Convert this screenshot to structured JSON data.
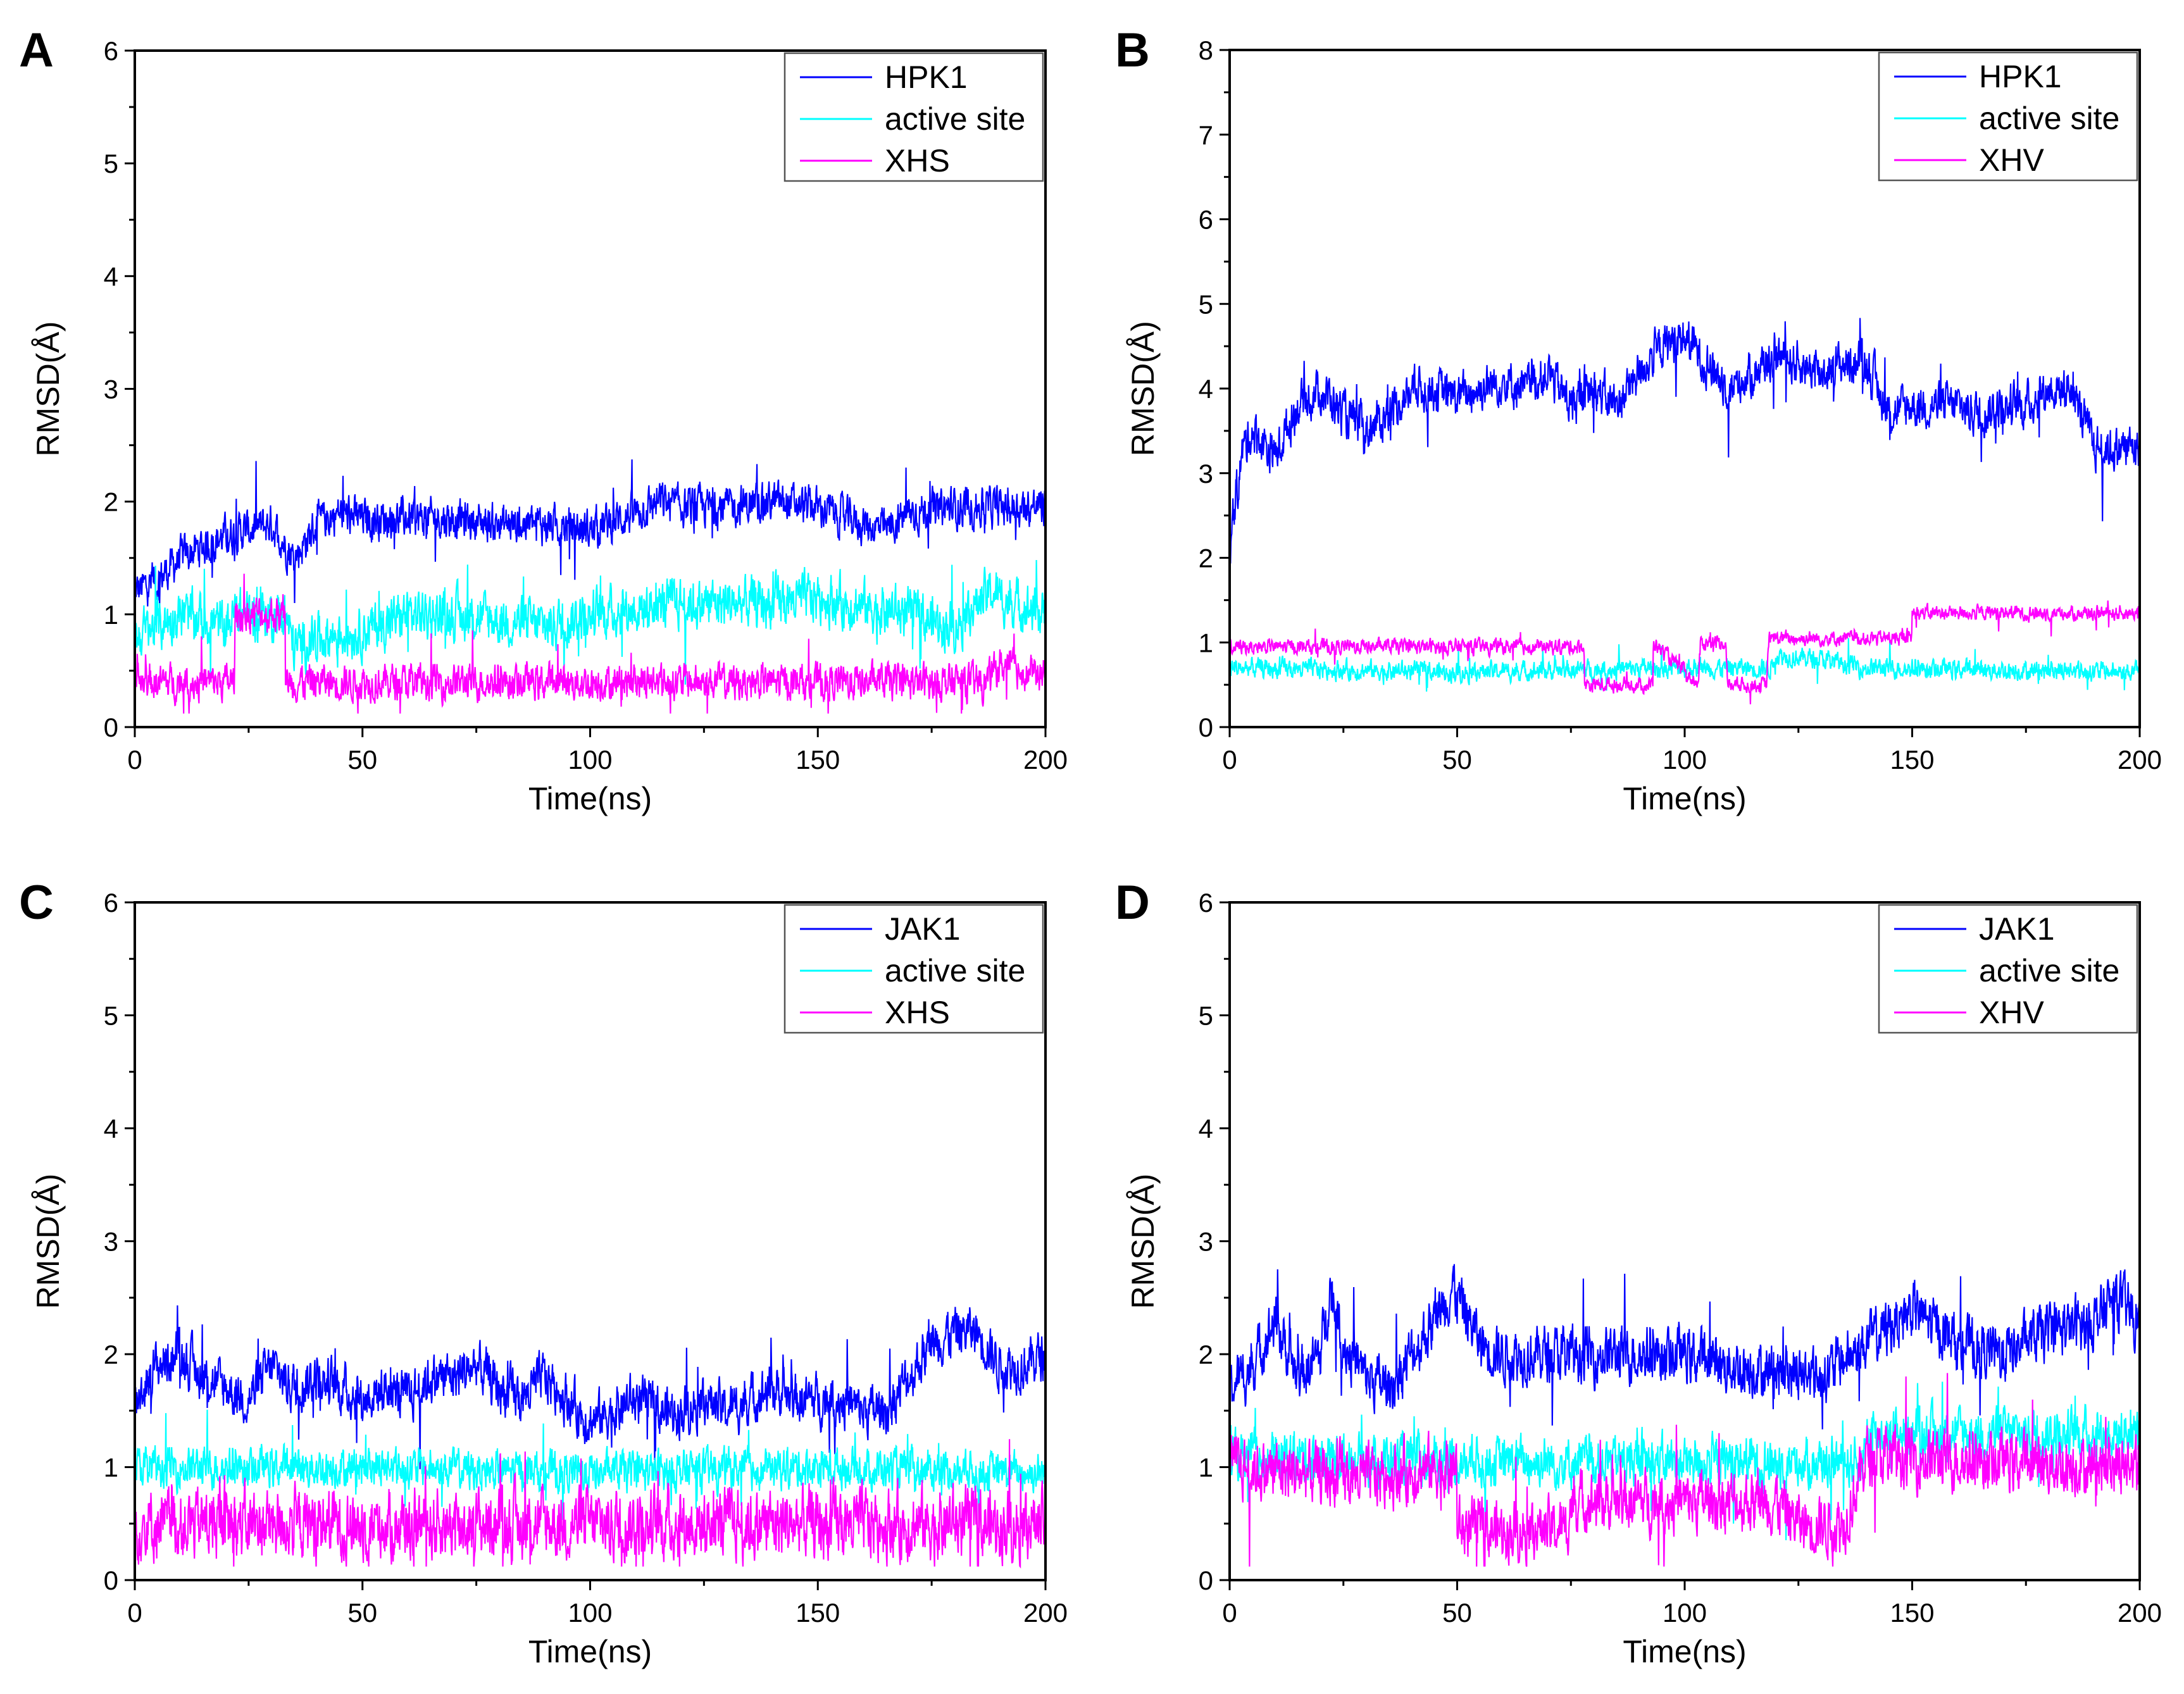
{
  "chart_data": [
    {
      "type": "line",
      "panel": "A",
      "xlabel": "Time(ns)",
      "ylabel": "RMSD(Å)",
      "xlim": [
        0,
        200
      ],
      "ylim": [
        0,
        6
      ],
      "xticks": [
        0,
        50,
        100,
        150,
        200
      ],
      "yticks": [
        0,
        1,
        2,
        3,
        4,
        5,
        6
      ],
      "legend_position": "top-right",
      "series": [
        {
          "name": "HPK1",
          "color": "#0000ff",
          "x": [
            0,
            5,
            10,
            15,
            20,
            25,
            30,
            35,
            40,
            45,
            50,
            60,
            70,
            80,
            90,
            100,
            110,
            115,
            120,
            130,
            140,
            150,
            160,
            165,
            170,
            180,
            190,
            200
          ],
          "mean": [
            1.2,
            1.3,
            1.5,
            1.6,
            1.7,
            1.75,
            1.8,
            1.5,
            1.8,
            1.9,
            1.85,
            1.85,
            1.85,
            1.8,
            1.8,
            1.75,
            1.9,
            2.0,
            1.95,
            1.95,
            2.0,
            1.95,
            1.8,
            1.75,
            1.9,
            1.95,
            1.95,
            1.95
          ],
          "spread": 0.2
        },
        {
          "name": "active site",
          "color": "#00ffff",
          "x": [
            0,
            10,
            20,
            22,
            33,
            35,
            40,
            50,
            60,
            70,
            80,
            90,
            100,
            120,
            140,
            150,
            170,
            180,
            188,
            190,
            200
          ],
          "mean": [
            0.8,
            1.0,
            0.9,
            1.0,
            1.0,
            0.7,
            0.8,
            0.85,
            1.0,
            1.0,
            0.95,
            0.9,
            1.0,
            1.1,
            1.1,
            1.15,
            1.0,
            0.9,
            1.2,
            1.15,
            1.0
          ],
          "spread": 0.25
        },
        {
          "name": "XHS",
          "color": "#ff00ff",
          "x": [
            0,
            21.9,
            22,
            33,
            33.1,
            60,
            100,
            150,
            187,
            190,
            200
          ],
          "mean": [
            0.4,
            0.4,
            1.0,
            1.0,
            0.4,
            0.4,
            0.4,
            0.4,
            0.4,
            0.55,
            0.45
          ],
          "spread": 0.18
        }
      ]
    },
    {
      "type": "line",
      "panel": "B",
      "xlabel": "Time(ns)",
      "ylabel": "RMSD(Å)",
      "xlim": [
        0,
        200
      ],
      "ylim": [
        0,
        8
      ],
      "xticks": [
        0,
        50,
        100,
        150,
        200
      ],
      "yticks": [
        0,
        1,
        2,
        3,
        4,
        5,
        6,
        7,
        8
      ],
      "legend_position": "top-right",
      "series": [
        {
          "name": "HPK1",
          "color": "#0000ff",
          "x": [
            0,
            3,
            5,
            10,
            15,
            20,
            25,
            30,
            35,
            40,
            45,
            50,
            55,
            60,
            65,
            70,
            75,
            80,
            85,
            90,
            95,
            100,
            105,
            110,
            115,
            120,
            125,
            130,
            135,
            140,
            145,
            150,
            155,
            160,
            165,
            170,
            175,
            180,
            185,
            190,
            195,
            200
          ],
          "mean": [
            2.2,
            3.3,
            3.5,
            3.2,
            3.8,
            4.0,
            3.7,
            3.5,
            3.7,
            4.0,
            4.0,
            3.9,
            4.0,
            4.1,
            4.0,
            4.2,
            3.8,
            4.0,
            3.8,
            4.2,
            4.5,
            4.6,
            4.3,
            4.0,
            4.2,
            4.4,
            4.3,
            4.2,
            4.3,
            4.3,
            3.7,
            3.8,
            3.8,
            3.8,
            3.7,
            3.8,
            3.8,
            4.0,
            4.0,
            3.3,
            3.3,
            3.3
          ],
          "spread": 0.3
        },
        {
          "name": "active site",
          "color": "#00ffff",
          "x": [
            0,
            50,
            100,
            119,
            120,
            130,
            140,
            200
          ],
          "mean": [
            0.7,
            0.65,
            0.7,
            0.7,
            0.85,
            0.8,
            0.7,
            0.65
          ],
          "spread": 0.13
        },
        {
          "name": "XHV",
          "color": "#ff00ff",
          "x": [
            0,
            77.9,
            78,
            93,
            93.1,
            103,
            103.5,
            105,
            109,
            109.5,
            118,
            118.5,
            149.9,
            150,
            200
          ],
          "mean": [
            0.95,
            0.95,
            0.5,
            0.5,
            1.0,
            0.5,
            1.0,
            1.0,
            1.0,
            0.5,
            0.5,
            1.05,
            1.05,
            1.35,
            1.35
          ],
          "spread": 0.1
        }
      ]
    },
    {
      "type": "line",
      "panel": "C",
      "xlabel": "Time(ns)",
      "ylabel": "RMSD(Å)",
      "xlim": [
        0,
        200
      ],
      "ylim": [
        0,
        6
      ],
      "xticks": [
        0,
        50,
        100,
        150,
        200
      ],
      "yticks": [
        0,
        1,
        2,
        3,
        4,
        5,
        6
      ],
      "legend_position": "top-right",
      "series": [
        {
          "name": "JAK1",
          "color": "#0000ff",
          "x": [
            0,
            5,
            10,
            15,
            20,
            25,
            30,
            35,
            40,
            45,
            50,
            55,
            60,
            65,
            70,
            75,
            80,
            85,
            90,
            95,
            100,
            105,
            110,
            115,
            120,
            125,
            130,
            135,
            140,
            145,
            150,
            155,
            160,
            165,
            170,
            175,
            180,
            185,
            190,
            195,
            200
          ],
          "mean": [
            1.6,
            1.9,
            2.0,
            1.8,
            1.7,
            1.6,
            1.9,
            1.7,
            1.8,
            1.7,
            1.6,
            1.7,
            1.6,
            1.8,
            1.8,
            1.9,
            1.7,
            1.6,
            1.8,
            1.6,
            1.4,
            1.5,
            1.6,
            1.5,
            1.5,
            1.6,
            1.5,
            1.6,
            1.7,
            1.6,
            1.6,
            1.6,
            1.5,
            1.5,
            1.8,
            2.1,
            2.2,
            2.2,
            1.9,
            1.9,
            2.0
          ],
          "spread": 0.25
        },
        {
          "name": "active site",
          "color": "#00ffff",
          "x": [
            0,
            50,
            100,
            150,
            200
          ],
          "mean": [
            1.0,
            1.0,
            0.95,
            1.0,
            0.95
          ],
          "spread": 0.2
        },
        {
          "name": "XHS",
          "color": "#ff00ff",
          "x": [
            0,
            50,
            100,
            150,
            200
          ],
          "mean": [
            0.5,
            0.5,
            0.5,
            0.5,
            0.5
          ],
          "spread": 0.35
        }
      ]
    },
    {
      "type": "line",
      "panel": "D",
      "xlabel": "Time(ns)",
      "ylabel": "RMSD(Å)",
      "xlim": [
        0,
        200
      ],
      "ylim": [
        0,
        6
      ],
      "xticks": [
        0,
        50,
        100,
        150,
        200
      ],
      "yticks": [
        0,
        1,
        2,
        3,
        4,
        5,
        6
      ],
      "legend_position": "top-right",
      "series": [
        {
          "name": "JAK1",
          "color": "#0000ff",
          "x": [
            0,
            5,
            10,
            15,
            20,
            22,
            25,
            30,
            35,
            40,
            45,
            49,
            55,
            60,
            80,
            100,
            110,
            130,
            140,
            150,
            160,
            170,
            180,
            190,
            195,
            200
          ],
          "mean": [
            1.7,
            1.9,
            2.3,
            1.8,
            2.0,
            2.6,
            2.1,
            1.8,
            1.7,
            2.0,
            2.3,
            2.6,
            2.1,
            2.0,
            2.0,
            2.0,
            1.9,
            1.8,
            2.1,
            2.4,
            2.1,
            2.0,
            2.2,
            2.3,
            2.5,
            2.3
          ],
          "spread": 0.28
        },
        {
          "name": "active site",
          "color": "#00ffff",
          "x": [
            0,
            50,
            100,
            139,
            140,
            200
          ],
          "mean": [
            1.1,
            1.05,
            1.05,
            1.05,
            1.3,
            1.3
          ],
          "spread": 0.25
        },
        {
          "name": "XHV",
          "color": "#ff00ff",
          "x": [
            0,
            30,
            45,
            49.9,
            50,
            74,
            75,
            120,
            125,
            135,
            140,
            200
          ],
          "mean": [
            1.0,
            0.9,
            1.0,
            1.0,
            0.45,
            0.45,
            0.7,
            0.7,
            0.5,
            0.5,
            1.1,
            1.0
          ],
          "spread": 0.3
        }
      ]
    }
  ]
}
